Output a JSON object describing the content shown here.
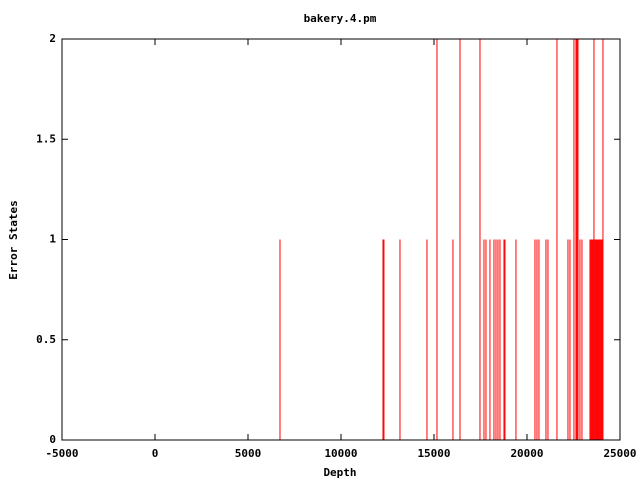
{
  "chart_data": {
    "type": "impulse",
    "title": "bakery.4.pm",
    "xlabel": "Depth",
    "ylabel": "Error States",
    "x": [
      6720,
      12257,
      12310,
      13171,
      14622,
      15160,
      16020,
      16397,
      17472,
      17687,
      17794,
      18009,
      18224,
      18332,
      18439,
      18547,
      18762,
      18815,
      19407,
      20428,
      20536,
      20643,
      21020,
      21127,
      21611,
      22203,
      22310,
      22525,
      22633,
      22686,
      22740,
      22847,
      22955,
      23385,
      23439,
      23493,
      23547,
      23600,
      23654,
      23708,
      23762,
      23816,
      23869,
      23923,
      23977,
      24031,
      24084
    ],
    "series": [
      {
        "color": "#ff0000",
        "values": [
          1,
          1,
          1,
          1,
          1,
          2,
          1,
          2,
          2,
          1,
          1,
          1,
          1,
          1,
          1,
          1,
          1,
          1,
          1,
          1,
          1,
          1,
          1,
          1,
          2,
          1,
          1,
          2,
          2,
          2,
          2,
          1,
          1,
          1,
          1,
          1,
          1,
          2,
          1,
          1,
          1,
          1,
          1,
          1,
          1,
          1,
          2
        ]
      }
    ],
    "xlim": [
      -5000,
      25000
    ],
    "xticks": [
      -5000,
      0,
      5000,
      10000,
      15000,
      20000,
      25000
    ],
    "ylim": [
      0,
      2
    ],
    "yticks": [
      0,
      0.5,
      1,
      1.5,
      2
    ],
    "grid": false
  }
}
